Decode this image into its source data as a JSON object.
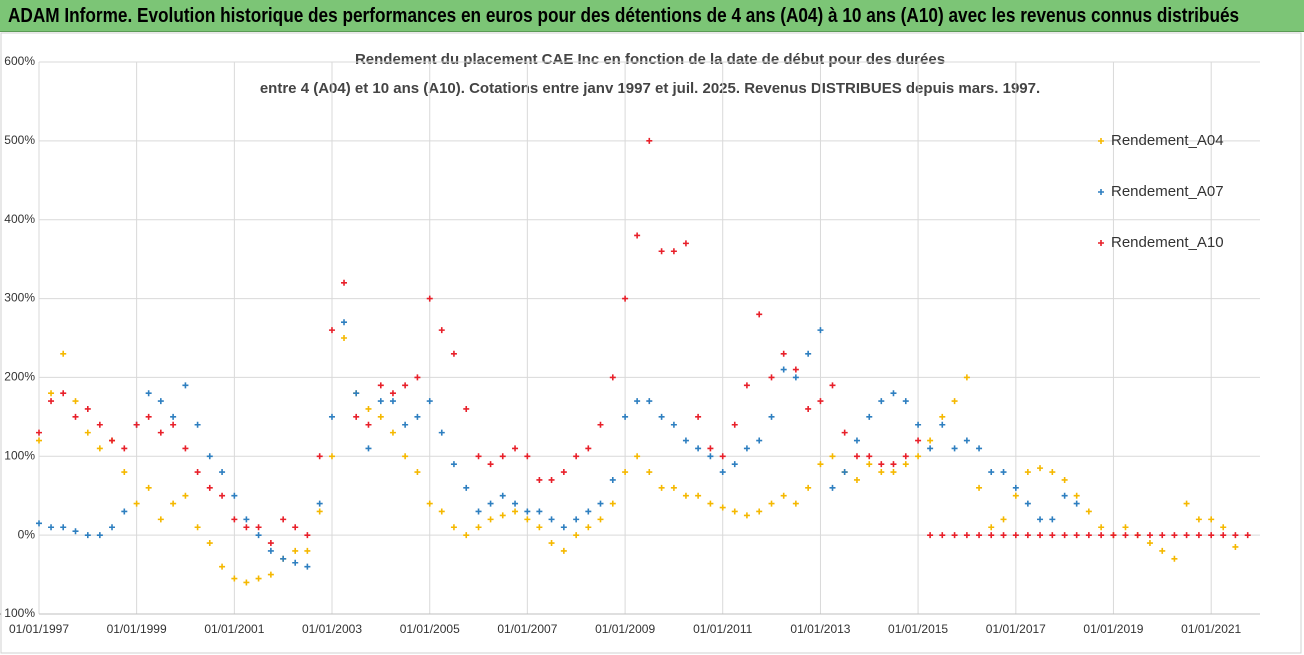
{
  "banner": {
    "title": "ADAM Informe. Evolution historique des performances en euros pour des détentions de 4 ans (A04) à 10 ans (A10) avec les revenus connus distribués"
  },
  "chart_data": {
    "type": "scatter",
    "title": [
      "Rendement du placement CAE Inc en fonction de la date de début pour des durées",
      "entre 4 (A04) et 10 ans (A10). Cotations entre janv 1997 et juil. 2025. Revenus DISTRIBUES depuis mars. 1997."
    ],
    "x": [
      "01/01/1997",
      "01/04/1997",
      "01/07/1997",
      "01/10/1997",
      "01/01/1998",
      "01/04/1998",
      "01/07/1998",
      "01/10/1998",
      "01/01/1999",
      "01/04/1999",
      "01/07/1999",
      "01/10/1999",
      "01/01/2000",
      "01/04/2000",
      "01/07/2000",
      "01/10/2000",
      "01/01/2001",
      "01/04/2001",
      "01/07/2001",
      "01/10/2001",
      "01/01/2002",
      "01/04/2002",
      "01/07/2002",
      "01/10/2002",
      "01/01/2003",
      "01/04/2003",
      "01/07/2003",
      "01/10/2003",
      "01/01/2004",
      "01/04/2004",
      "01/07/2004",
      "01/10/2004",
      "01/01/2005",
      "01/04/2005",
      "01/07/2005",
      "01/10/2005",
      "01/01/2006",
      "01/04/2006",
      "01/07/2006",
      "01/10/2006",
      "01/01/2007",
      "01/04/2007",
      "01/07/2007",
      "01/10/2007",
      "01/01/2008",
      "01/04/2008",
      "01/07/2008",
      "01/10/2008",
      "01/01/2009",
      "01/04/2009",
      "01/07/2009",
      "01/10/2009",
      "01/01/2010",
      "01/04/2010",
      "01/07/2010",
      "01/10/2010",
      "01/01/2011",
      "01/04/2011",
      "01/07/2011",
      "01/10/2011",
      "01/01/2012",
      "01/04/2012",
      "01/07/2012",
      "01/10/2012",
      "01/01/2013",
      "01/04/2013",
      "01/07/2013",
      "01/10/2013",
      "01/01/2014",
      "01/04/2014",
      "01/07/2014",
      "01/10/2014",
      "01/01/2015",
      "01/04/2015",
      "01/07/2015",
      "01/10/2015",
      "01/01/2016",
      "01/04/2016",
      "01/07/2016",
      "01/10/2016",
      "01/01/2017",
      "01/04/2017",
      "01/07/2017",
      "01/10/2017",
      "01/01/2018",
      "01/04/2018",
      "01/07/2018",
      "01/10/2018",
      "01/01/2019",
      "01/04/2019",
      "01/07/2019",
      "01/10/2019",
      "01/01/2020",
      "01/04/2020",
      "01/07/2020",
      "01/10/2020",
      "01/01/2021",
      "01/04/2021",
      "01/07/2021",
      "01/10/2021"
    ],
    "series": [
      {
        "name": "Rendement_A04",
        "color": "#f5b800",
        "values": [
          120,
          180,
          230,
          170,
          130,
          110,
          120,
          80,
          40,
          60,
          20,
          40,
          50,
          10,
          -10,
          -40,
          -55,
          -60,
          -55,
          -50,
          -30,
          -20,
          -20,
          30,
          100,
          250,
          180,
          160,
          150,
          130,
          100,
          80,
          40,
          30,
          10,
          0,
          10,
          20,
          25,
          30,
          20,
          10,
          -10,
          -20,
          0,
          10,
          20,
          40,
          80,
          100,
          80,
          60,
          60,
          50,
          50,
          40,
          35,
          30,
          25,
          30,
          40,
          50,
          40,
          60,
          90,
          100,
          80,
          70,
          90,
          80,
          80,
          90,
          100,
          120,
          150,
          170,
          200,
          60,
          10,
          20,
          50,
          80,
          85,
          80,
          70,
          50,
          30,
          10,
          0,
          10,
          0,
          -10,
          -20,
          -30,
          40,
          20,
          20,
          10,
          -15,
          null
        ]
      },
      {
        "name": "Rendement_A07",
        "color": "#2e7fc0",
        "values": [
          15,
          10,
          10,
          5,
          0,
          0,
          10,
          30,
          140,
          180,
          170,
          150,
          190,
          140,
          100,
          80,
          50,
          20,
          0,
          -20,
          -30,
          -35,
          -40,
          40,
          150,
          270,
          180,
          110,
          170,
          170,
          140,
          150,
          170,
          130,
          90,
          60,
          30,
          40,
          50,
          40,
          30,
          30,
          20,
          10,
          20,
          30,
          40,
          70,
          150,
          170,
          170,
          150,
          140,
          120,
          110,
          100,
          80,
          90,
          110,
          120,
          150,
          210,
          200,
          230,
          260,
          60,
          80,
          120,
          150,
          170,
          180,
          170,
          140,
          110,
          140,
          110,
          120,
          110,
          80,
          80,
          60,
          40,
          20,
          20,
          50,
          40,
          null,
          null,
          null,
          null,
          null,
          null,
          null,
          null,
          null,
          null,
          null,
          null,
          null,
          null
        ]
      },
      {
        "name": "Rendement_A10",
        "color": "#e8202a",
        "values": [
          130,
          170,
          180,
          150,
          160,
          140,
          120,
          110,
          140,
          150,
          130,
          140,
          110,
          80,
          60,
          50,
          20,
          10,
          10,
          -10,
          20,
          10,
          0,
          100,
          260,
          320,
          150,
          140,
          190,
          180,
          190,
          200,
          300,
          260,
          230,
          160,
          100,
          90,
          100,
          110,
          100,
          70,
          70,
          80,
          100,
          110,
          140,
          200,
          300,
          380,
          500,
          360,
          360,
          370,
          150,
          110,
          100,
          140,
          190,
          280,
          200,
          230,
          210,
          160,
          170,
          190,
          130,
          100,
          100,
          90,
          90,
          100,
          120,
          0,
          0,
          0,
          0,
          0,
          0,
          0,
          0,
          0,
          0,
          0,
          0,
          0,
          0,
          0,
          0,
          0,
          0,
          0,
          0,
          0,
          0,
          0,
          0,
          0,
          0,
          0
        ]
      }
    ],
    "xlim": [
      "01/01/1997",
      "01/01/2022"
    ],
    "xticks": [
      "01/01/1997",
      "01/01/1999",
      "01/01/2001",
      "01/01/2003",
      "01/01/2005",
      "01/01/2007",
      "01/01/2009",
      "01/01/2011",
      "01/01/2013",
      "01/01/2015",
      "01/01/2017",
      "01/01/2019",
      "01/01/2021"
    ],
    "ylim": [
      -100,
      600
    ],
    "yticks": [
      {
        "value": -100,
        "label": "- 100%"
      },
      {
        "value": 0,
        "label": "0%"
      },
      {
        "value": 100,
        "label": "100%"
      },
      {
        "value": 200,
        "label": "200%"
      },
      {
        "value": 300,
        "label": "300%"
      },
      {
        "value": 400,
        "label": "400%"
      },
      {
        "value": 500,
        "label": "500%"
      },
      {
        "value": 600,
        "label": "600%"
      }
    ],
    "grid": true,
    "legend": "right"
  }
}
